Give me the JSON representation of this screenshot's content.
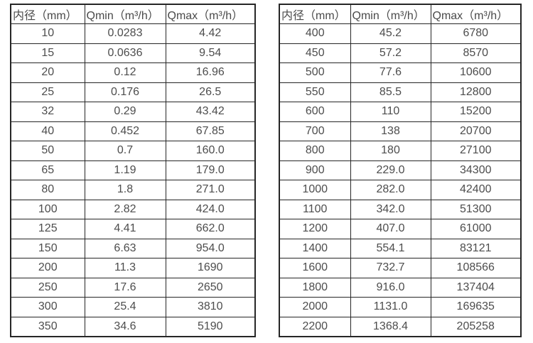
{
  "page": {
    "background": "#ffffff",
    "border_color": "#262626",
    "text_color": "#4d4d4d"
  },
  "tables": [
    {
      "name": "small-diameter-flow-table",
      "headers": [
        "内径（mm）",
        "Qmin（m³/h）",
        "Qmax（m³/h）"
      ],
      "rows": [
        [
          "10",
          "0.0283",
          "4.42"
        ],
        [
          "15",
          "0.0636",
          "9.54"
        ],
        [
          "20",
          "0.12",
          "16.96"
        ],
        [
          "25",
          "0.176",
          "26.5"
        ],
        [
          "32",
          "0.29",
          "43.42"
        ],
        [
          "40",
          "0.452",
          "67.85"
        ],
        [
          "50",
          "0.7",
          "160.0"
        ],
        [
          "65",
          "1.19",
          "179.0"
        ],
        [
          "80",
          "1.8",
          "271.0"
        ],
        [
          "100",
          "2.82",
          "424.0"
        ],
        [
          "125",
          "4.41",
          "662.0"
        ],
        [
          "150",
          "6.63",
          "954.0"
        ],
        [
          "200",
          "11.3",
          "1690"
        ],
        [
          "250",
          "17.6",
          "2650"
        ],
        [
          "300",
          "25.4",
          "3810"
        ],
        [
          "350",
          "34.6",
          "5190"
        ]
      ]
    },
    {
      "name": "large-diameter-flow-table",
      "headers": [
        "内径（mm）",
        "Qmin（m³/h）",
        "Qmax（m³/h）"
      ],
      "rows": [
        [
          "400",
          "45.2",
          "6780"
        ],
        [
          "450",
          "57.2",
          "8570"
        ],
        [
          "500",
          "77.6",
          "10600"
        ],
        [
          "550",
          "85.5",
          "12800"
        ],
        [
          "600",
          "110",
          "15200"
        ],
        [
          "700",
          "138",
          "20700"
        ],
        [
          "800",
          "180",
          "27100"
        ],
        [
          "900",
          "229.0",
          "34300"
        ],
        [
          "1000",
          "282.0",
          "42400"
        ],
        [
          "1100",
          "342.0",
          "51300"
        ],
        [
          "1200",
          "407.0",
          "61000"
        ],
        [
          "1400",
          "554.1",
          "83121"
        ],
        [
          "1600",
          "732.7",
          "108566"
        ],
        [
          "1800",
          "916.0",
          "137404"
        ],
        [
          "2000",
          "1131.0",
          "169635"
        ],
        [
          "2200",
          "1368.4",
          "205258"
        ]
      ]
    }
  ]
}
